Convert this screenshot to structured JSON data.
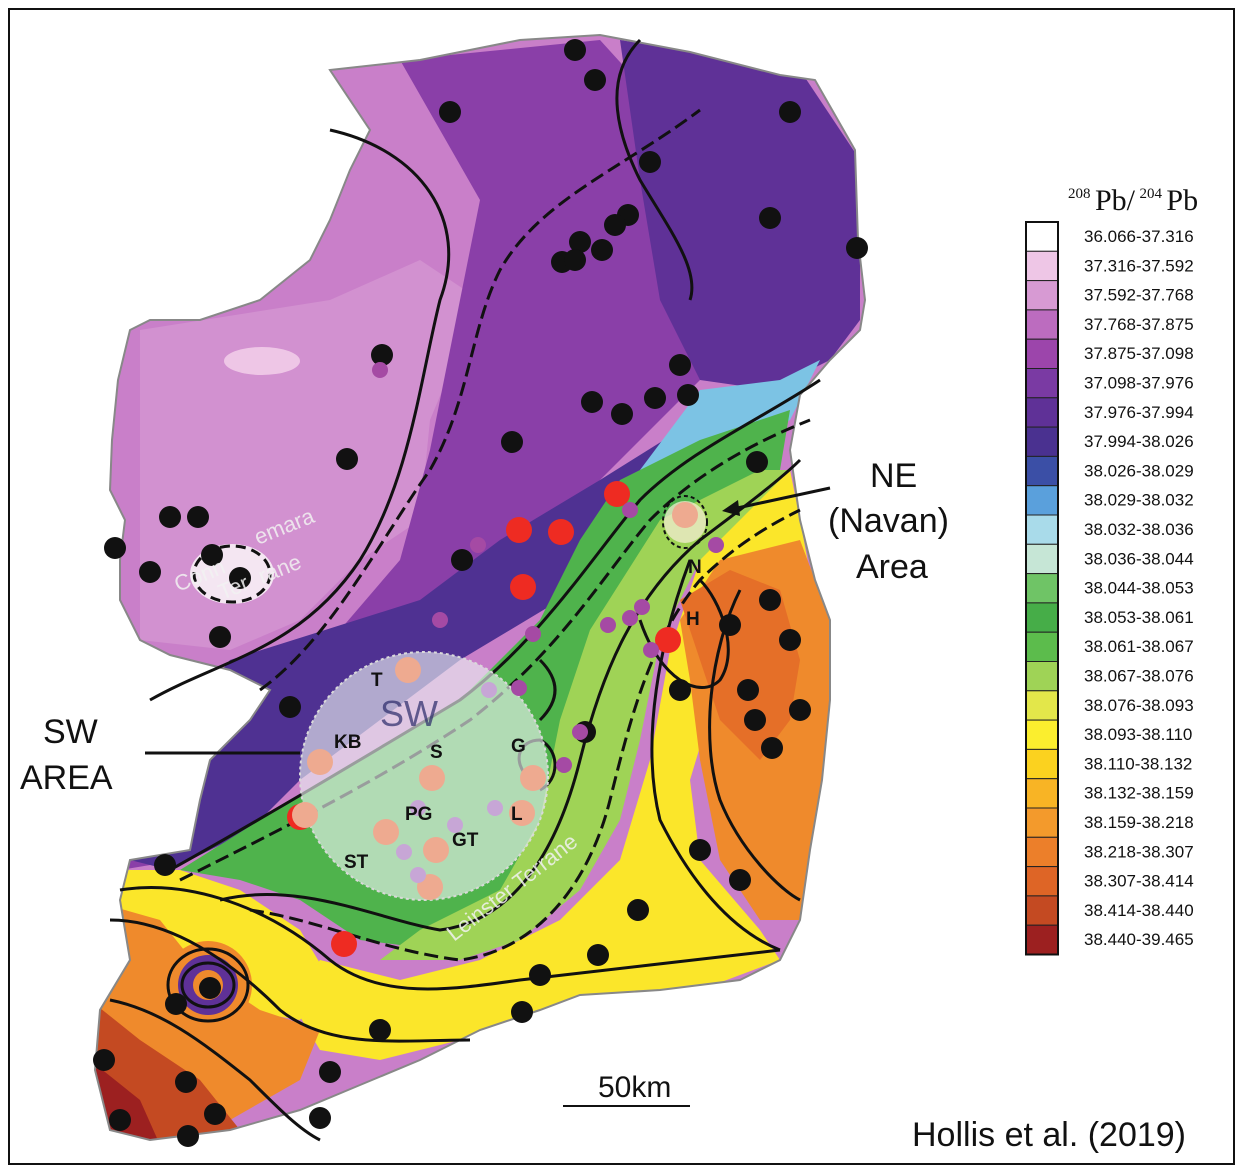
{
  "legend": {
    "title_main": "Pb/",
    "title_main2": "Pb",
    "title_sup1": "208",
    "title_sup2": "204",
    "ranges": [
      {
        "label": "36.066-37.316",
        "color": "#ffffff"
      },
      {
        "label": "37.316-37.592",
        "color": "#eec6e6"
      },
      {
        "label": "37.592-37.768",
        "color": "#d79ad3"
      },
      {
        "label": "37.768-37.875",
        "color": "#bc6cbf"
      },
      {
        "label": "37.875-37.098",
        "color": "#9c45ab"
      },
      {
        "label": "37.098-37.976",
        "color": "#7a3aa3"
      },
      {
        "label": "37.976-37.994",
        "color": "#5f3197"
      },
      {
        "label": "37.994-38.026",
        "color": "#4a3190"
      },
      {
        "label": "38.026-38.029",
        "color": "#3b4fa6"
      },
      {
        "label": "38.029-38.032",
        "color": "#5aa0dc"
      },
      {
        "label": "38.032-38.036",
        "color": "#a9dbea"
      },
      {
        "label": "38.036-38.044",
        "color": "#c6e6d6"
      },
      {
        "label": "38.044-38.053",
        "color": "#6fc466"
      },
      {
        "label": "38.053-38.061",
        "color": "#46ad48"
      },
      {
        "label": "38.061-38.067",
        "color": "#5cbc4c"
      },
      {
        "label": "38.067-38.076",
        "color": "#9fd356"
      },
      {
        "label": "38.076-38.093",
        "color": "#e3e74a"
      },
      {
        "label": "38.093-38.110",
        "color": "#fbee2e"
      },
      {
        "label": "38.110-38.132",
        "color": "#fbd21f"
      },
      {
        "label": "38.132-38.159",
        "color": "#f8b425"
      },
      {
        "label": "38.159-38.218",
        "color": "#f39a2c"
      },
      {
        "label": "38.218-38.307",
        "color": "#ec7f2a"
      },
      {
        "label": "38.307-38.414",
        "color": "#de6526"
      },
      {
        "label": "38.414-38.440",
        "color": "#c44a22"
      },
      {
        "label": "38.440-39.465",
        "color": "#9c2020"
      }
    ]
  },
  "labels": {
    "ne_area_1": "NE",
    "ne_area_2": "(Navan)",
    "ne_area_3": "Area",
    "sw_area_1": "SW",
    "sw_area_2": "AREA",
    "sw_circle": "SW",
    "terrane_1a": "Conn",
    "terrane_1b": "emara",
    "terrane_2a": "Ter",
    "terrane_2b": "rane",
    "leinster": "Leinster Terrane",
    "sites": {
      "T": "T",
      "KB": "KB",
      "S": "S",
      "G": "G",
      "PG": "PG",
      "GT": "GT",
      "L": "L",
      "ST": "ST",
      "N": "N",
      "H": "H"
    }
  },
  "scale_bar": {
    "label": "50km"
  },
  "credit": "Hollis et al. (2019)",
  "colors": {
    "deposit_black": "#111111",
    "deposit_red": "#ee2b22",
    "deposit_salmon": "#eeaa90",
    "deposit_purple": "#a54aa4",
    "deposit_lilac": "#c7a6d6"
  }
}
